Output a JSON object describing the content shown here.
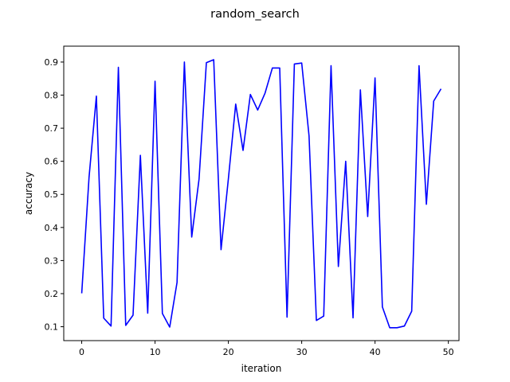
{
  "chart_data": {
    "type": "line",
    "title": "random_search",
    "xlabel": "iteration",
    "ylabel": "accuracy",
    "xlim": [
      -2.45,
      51.45
    ],
    "ylim": [
      0.058,
      0.948
    ],
    "xticks": [
      0,
      10,
      20,
      30,
      40,
      50
    ],
    "yticks": [
      0.1,
      0.2,
      0.3,
      0.4,
      0.5,
      0.6,
      0.7,
      0.8,
      0.9
    ],
    "grid": false,
    "series": [
      {
        "color": "#0000ff",
        "x": [
          0,
          1,
          2,
          3,
          4,
          5,
          6,
          7,
          8,
          9,
          10,
          11,
          12,
          13,
          14,
          15,
          16,
          17,
          18,
          19,
          20,
          21,
          22,
          23,
          24,
          25,
          26,
          27,
          28,
          29,
          30,
          31,
          32,
          33,
          34,
          35,
          36,
          37,
          38,
          39,
          40,
          41,
          42,
          43,
          44,
          45,
          46,
          47,
          48,
          49
        ],
        "values": [
          0.201,
          0.552,
          0.797,
          0.126,
          0.102,
          0.884,
          0.104,
          0.135,
          0.618,
          0.141,
          0.842,
          0.14,
          0.099,
          0.234,
          0.9,
          0.371,
          0.546,
          0.898,
          0.907,
          0.333,
          0.547,
          0.773,
          0.633,
          0.802,
          0.755,
          0.806,
          0.882,
          0.882,
          0.129,
          0.894,
          0.897,
          0.677,
          0.119,
          0.132,
          0.889,
          0.282,
          0.6,
          0.127,
          0.816,
          0.433,
          0.852,
          0.16,
          0.097,
          0.097,
          0.102,
          0.147,
          0.889,
          0.47,
          0.782,
          0.819
        ]
      }
    ]
  }
}
